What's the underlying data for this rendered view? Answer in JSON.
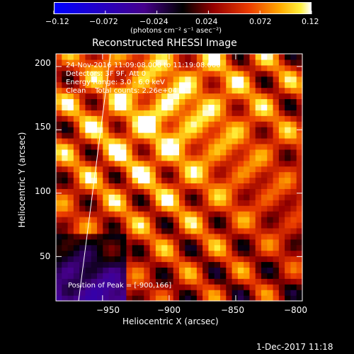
{
  "chart_data": {
    "type": "heatmap",
    "title": "Reconstructed RHESSI Image",
    "xlabel": "Heliocentric X (arcsec)",
    "ylabel": "Heliocentric Y (arcsec)",
    "xlim": [
      -985,
      -800
    ],
    "ylim": [
      15,
      210
    ],
    "x_ticks": [
      -950,
      -900,
      -850,
      -800
    ],
    "x_tick_labels": [
      "−950",
      "−900",
      "−850",
      "−800"
    ],
    "y_ticks": [
      50,
      100,
      150,
      200
    ],
    "y_tick_labels": [
      "50",
      "100",
      "150",
      "200"
    ],
    "colorbar": {
      "range": [
        -0.12,
        0.12
      ],
      "ticks": [
        -0.12,
        -0.072,
        -0.024,
        0.024,
        0.072,
        0.12
      ],
      "tick_labels": [
        "−0.12",
        "−0.072",
        "−0.024",
        "0.024",
        "0.072",
        "0.12"
      ],
      "unit_label": "(photons cm⁻² s⁻¹ asec⁻²)"
    },
    "annotations": {
      "time_range": "24-Nov-2016 11:09:08.000 to 11:19:08.000",
      "detectors": "Detectors: 3F 9F, Att 0",
      "energy": "Energy Range: 3.0 - 6.0 keV",
      "method": "Clean    Total counts: 2.26e+04",
      "peak": "Position of Peak = [-900,166]"
    },
    "peak_position": [
      -900,
      166
    ],
    "limb_line": [
      [
        -968,
        15
      ],
      [
        -944,
        210
      ]
    ]
  },
  "footer": {
    "timestamp": "1-Dec-2017 11:18"
  }
}
